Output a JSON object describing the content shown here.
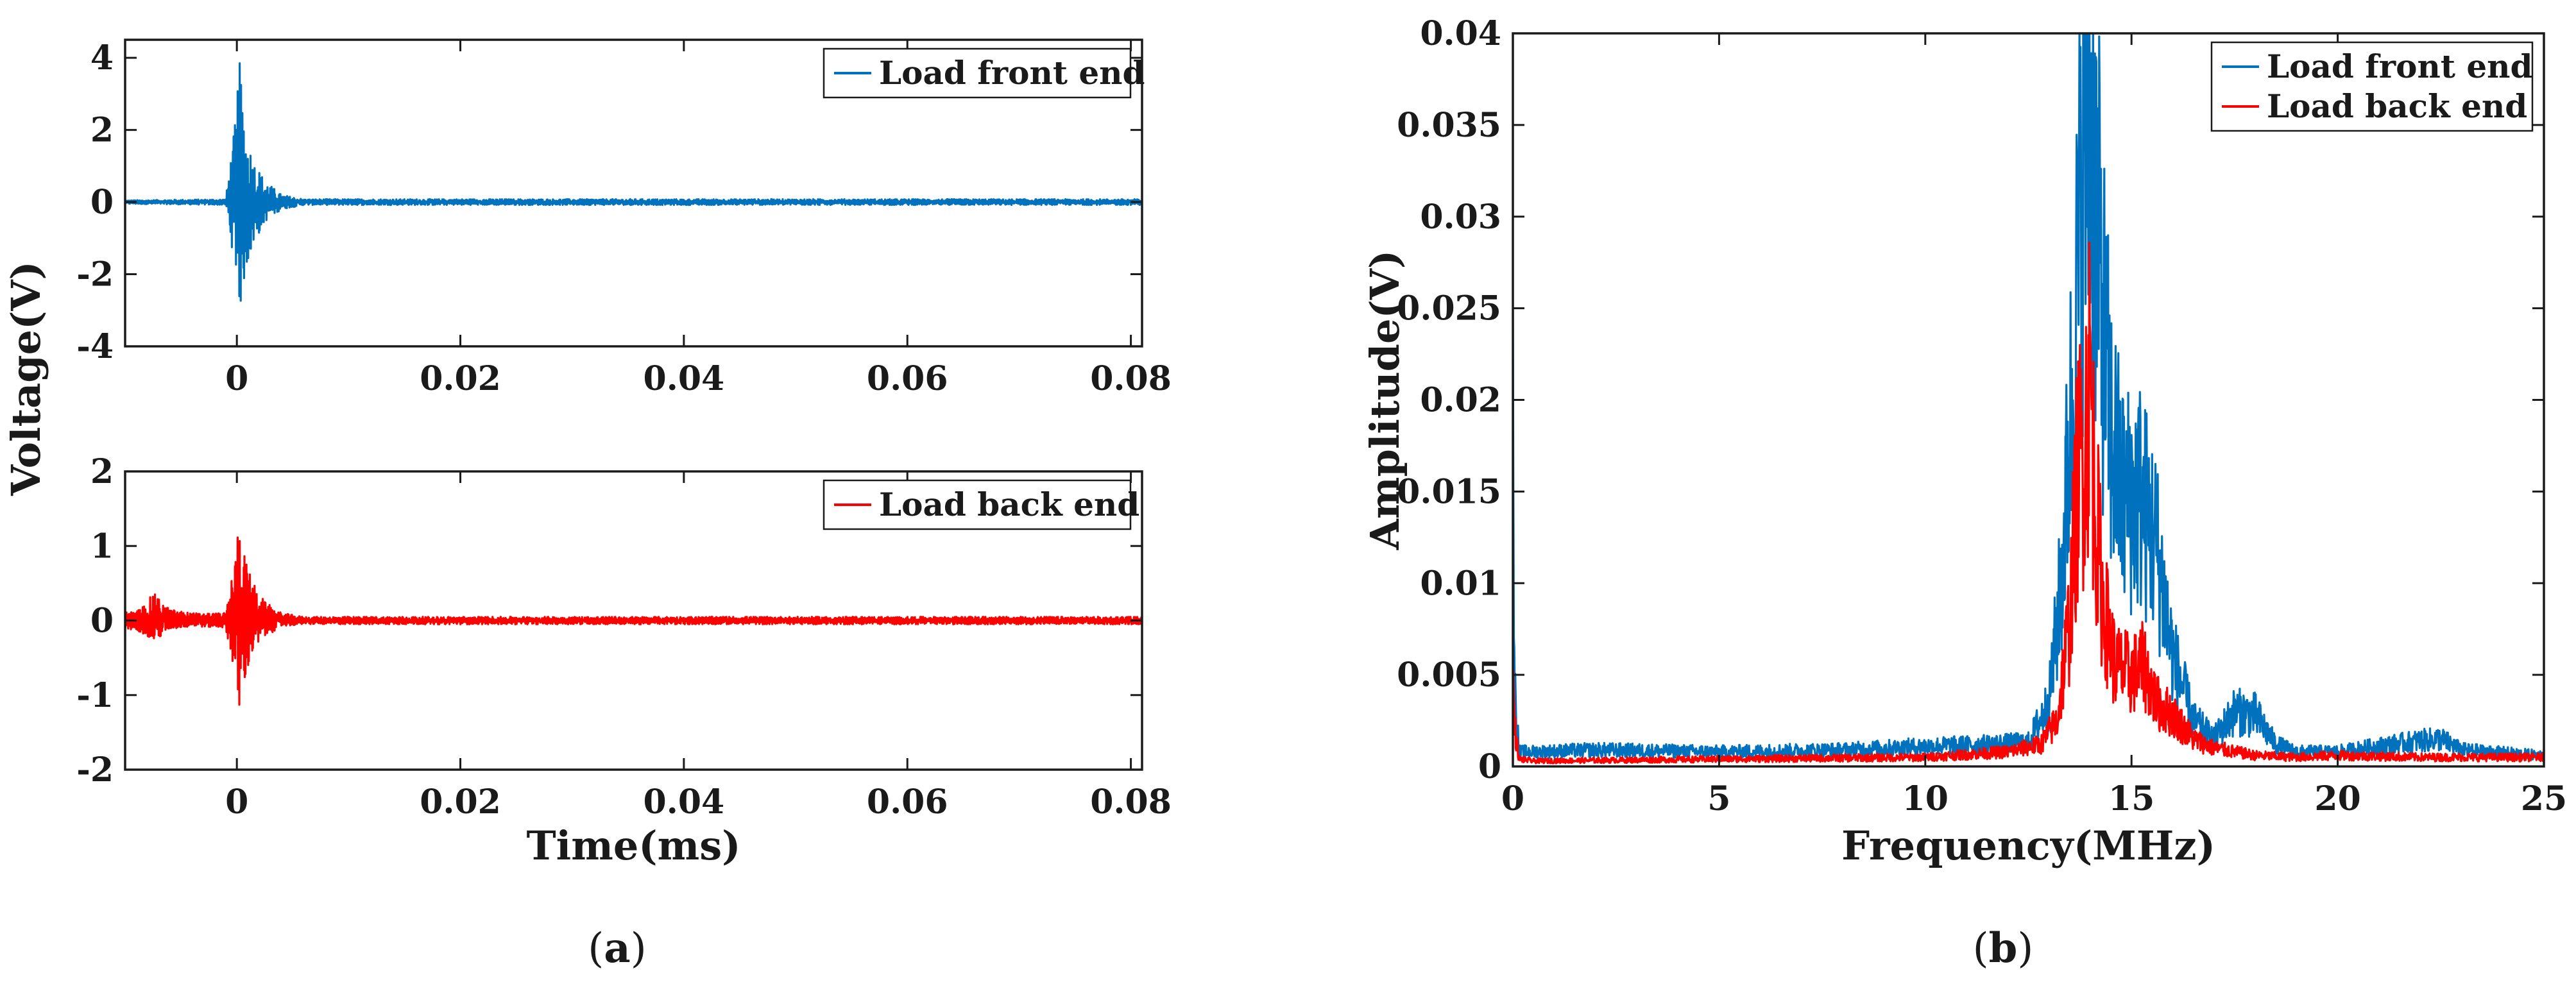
{
  "captions": {
    "a_open": "(",
    "a_letter": "a",
    "a_close": ")",
    "b_open": "(",
    "b_letter": "b",
    "b_close": ")"
  },
  "colors": {
    "front": "#0072BD",
    "back": "#FF0000",
    "axis": "#1a1a1a"
  },
  "chart_data": [
    {
      "id": "a-top",
      "type": "line",
      "title": "",
      "xlabel": "",
      "ylabel": "Voltage(V)",
      "xlim": [
        -0.01,
        0.081
      ],
      "ylim": [
        -4,
        4.5
      ],
      "xticks": [
        0,
        0.02,
        0.04,
        0.06,
        0.08
      ],
      "xtick_labels": [
        "0",
        "0.02",
        "0.04",
        "0.06",
        "0.08"
      ],
      "yticks": [
        -4,
        -2,
        0,
        2,
        4
      ],
      "ytick_labels": [
        "-4",
        "-2",
        "0",
        "2",
        "4"
      ],
      "grid": false,
      "legend_position": "top-right",
      "series": [
        {
          "name": "Load front end",
          "color": "#0072BD",
          "signal": "burst",
          "peak_time_ms": 0.0002,
          "x": [
            -0.01,
            -0.001,
            0.0,
            0.00015,
            0.0004,
            0.0008,
            0.0015,
            0.0025,
            0.004,
            0.006,
            0.081
          ],
          "y_max": [
            0.05,
            0.08,
            2.6,
            4.2,
            3.4,
            2.0,
            1.2,
            0.6,
            0.2,
            0.08,
            0.08
          ],
          "y_min": [
            -0.05,
            -0.08,
            -2.2,
            -3.3,
            -2.8,
            -1.9,
            -1.2,
            -0.55,
            -0.2,
            -0.08,
            -0.08
          ]
        }
      ]
    },
    {
      "id": "a-bottom",
      "type": "line",
      "title": "",
      "xlabel": "Time(ms)",
      "ylabel": "",
      "xlim": [
        -0.01,
        0.081
      ],
      "ylim": [
        -2,
        2
      ],
      "xticks": [
        0,
        0.02,
        0.04,
        0.06,
        0.08
      ],
      "xtick_labels": [
        "0",
        "0.02",
        "0.04",
        "0.06",
        "0.08"
      ],
      "yticks": [
        -2,
        -1,
        0,
        1,
        2
      ],
      "ytick_labels": [
        "-2",
        "-1",
        "0",
        "1",
        "2"
      ],
      "grid": false,
      "legend_position": "top-right",
      "series": [
        {
          "name": "Load back end",
          "color": "#FF0000",
          "signal": "burst",
          "peak_time_ms": 0.0002,
          "x": [
            -0.009,
            -0.008,
            -0.0075,
            -0.007,
            -0.006,
            -0.004,
            -0.001,
            0.0,
            0.00015,
            0.0004,
            0.0008,
            0.0015,
            0.0025,
            0.004,
            0.006,
            0.081
          ],
          "y_max": [
            0.12,
            0.25,
            0.38,
            0.3,
            0.15,
            0.1,
            0.1,
            1.0,
            1.6,
            1.25,
            0.8,
            0.5,
            0.25,
            0.1,
            0.05,
            0.05
          ],
          "y_min": [
            -0.12,
            -0.22,
            -0.3,
            -0.25,
            -0.12,
            -0.08,
            -0.1,
            -0.9,
            -1.45,
            -1.2,
            -0.75,
            -0.45,
            -0.22,
            -0.08,
            -0.05,
            -0.05
          ]
        }
      ]
    },
    {
      "id": "b",
      "type": "line",
      "title": "",
      "xlabel": "Frequency(MHz)",
      "ylabel": "Amplitude(V)",
      "xlim": [
        0,
        25
      ],
      "ylim": [
        0,
        0.04
      ],
      "xticks": [
        0,
        5,
        10,
        15,
        20,
        25
      ],
      "xtick_labels": [
        "0",
        "5",
        "10",
        "15",
        "20",
        "25"
      ],
      "yticks": [
        0,
        0.005,
        0.01,
        0.015,
        0.02,
        0.025,
        0.03,
        0.035,
        0.04
      ],
      "ytick_labels": [
        "0",
        "0.005",
        "0.01",
        "0.015",
        "0.02",
        "0.025",
        "0.03",
        "0.035",
        "0.04"
      ],
      "grid": false,
      "legend_position": "top-right",
      "series": [
        {
          "name": "Load front end",
          "color": "#0072BD",
          "signal": "spectrum",
          "x": [
            0,
            0.05,
            0.15,
            0.5,
            2,
            5,
            8,
            10,
            11.5,
            12.5,
            13,
            13.3,
            13.6,
            13.85,
            14.0,
            14.2,
            14.5,
            14.8,
            15.2,
            15.6,
            16.0,
            16.5,
            17.0,
            17.5,
            18.0,
            18.5,
            19,
            20,
            22,
            22.5,
            23,
            25
          ],
          "y": [
            0.019,
            0.004,
            0.0008,
            0.0008,
            0.0009,
            0.0008,
            0.0009,
            0.0011,
            0.0012,
            0.0013,
            0.0035,
            0.01,
            0.022,
            0.034,
            0.0362,
            0.028,
            0.018,
            0.0145,
            0.0148,
            0.012,
            0.006,
            0.0025,
            0.0015,
            0.003,
            0.0028,
            0.0012,
            0.0008,
            0.0008,
            0.0014,
            0.0015,
            0.0009,
            0.0006
          ]
        },
        {
          "name": "Load back end",
          "color": "#FF0000",
          "signal": "spectrum",
          "x": [
            0,
            0.05,
            0.15,
            0.5,
            5,
            10,
            12,
            12.8,
            13.2,
            13.5,
            13.7,
            13.85,
            14.0,
            14.1,
            14.3,
            14.6,
            15.0,
            15.3,
            15.6,
            16.0,
            16.5,
            17,
            17.5,
            18,
            19,
            20,
            22,
            25
          ],
          "y": [
            0.005,
            0.002,
            0.0004,
            0.0003,
            0.0004,
            0.0005,
            0.0008,
            0.0012,
            0.0025,
            0.008,
            0.016,
            0.0175,
            0.0215,
            0.015,
            0.009,
            0.0055,
            0.005,
            0.0055,
            0.0035,
            0.0028,
            0.0015,
            0.001,
            0.0008,
            0.0006,
            0.0005,
            0.0006,
            0.0005,
            0.0005
          ]
        }
      ]
    }
  ]
}
